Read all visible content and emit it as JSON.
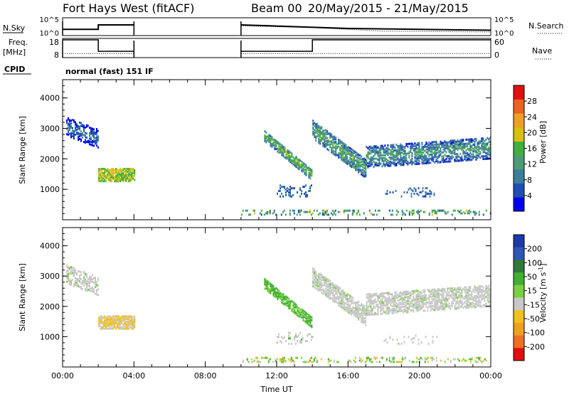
{
  "header": {
    "title": "Fort Hays West (fitACF)",
    "beam_label": "Beam 00",
    "date_range": "20/May/2015 - 21/May/2015"
  },
  "chart_data": [
    {
      "type": "line",
      "id": "noise-panel",
      "left_label": "N.Sky",
      "right_label": "N.Search",
      "y_ticks_left": [
        "10^5",
        "10^0"
      ],
      "y_ticks_right": [
        "10^5",
        "10^0"
      ],
      "x_hours": [
        0,
        4,
        4,
        10,
        24
      ],
      "note": "N.Sky trace present 00:00-04:00 and 10:00-24:00; no data 04:00-10:00",
      "series": [
        {
          "name": "N.Sky",
          "segments": [
            {
              "x": [
                0,
                2,
                2,
                4
              ],
              "y": [
                0.35,
                0.35,
                0.6,
                0.6
              ]
            },
            {
              "x": [
                10,
                13,
                16,
                20,
                24
              ],
              "y": [
                0.6,
                0.5,
                0.4,
                0.35,
                0.3
              ]
            }
          ]
        },
        {
          "name": "N.Search",
          "style": "dotted",
          "segments": [
            {
              "x": [
                10,
                14,
                18,
                24
              ],
              "y": [
                0.55,
                0.45,
                0.25,
                0.2
              ]
            }
          ]
        }
      ]
    },
    {
      "type": "line",
      "id": "freq-panel",
      "left_label": "Freq.",
      "left_unit": "[MHz]",
      "right_label": "Nave",
      "y_ticks_left": [
        "18",
        "8"
      ],
      "y_ticks_right": [
        "60",
        "0"
      ],
      "series": [
        {
          "name": "Freq.",
          "segments": [
            {
              "x": [
                0,
                2,
                2,
                4
              ],
              "y": [
                18,
                18,
                11,
                11
              ]
            },
            {
              "x": [
                10,
                14,
                14,
                24
              ],
              "y": [
                11,
                11,
                18,
                18
              ]
            }
          ]
        },
        {
          "name": "Nave",
          "style": "dotted",
          "segments": [
            {
              "x": [
                0,
                4
              ],
              "y": [
                10,
                10
              ]
            },
            {
              "x": [
                10,
                24
              ],
              "y": [
                10,
                10
              ]
            }
          ]
        }
      ]
    },
    {
      "type": "table",
      "id": "cpid-panel",
      "label": "CPID",
      "value": "normal (fast) 151 IF"
    },
    {
      "type": "heatmap",
      "id": "power-panel",
      "ylabel": "Slant Range [km]",
      "ylim": [
        0,
        4600
      ],
      "y_ticks": [
        1000,
        2000,
        3000,
        4000
      ],
      "xlim_hours": [
        0,
        24
      ],
      "colorbar": {
        "label": "Power [dB]",
        "ticks": [
          "4",
          "8",
          "12",
          "16",
          "20",
          "24",
          "28"
        ],
        "colors": [
          "#0000ee",
          "#1f4fb5",
          "#3c7d9a",
          "#4f9a75",
          "#3fb03f",
          "#d8c010",
          "#f0a020",
          "#f06020",
          "#e01010"
        ]
      },
      "features": [
        {
          "name": "morning-upper",
          "x": [
            0.2,
            2.0
          ],
          "range_km": [
            2600,
            3200
          ],
          "dB": 8
        },
        {
          "name": "morning-lower",
          "x": [
            2.0,
            4.0
          ],
          "range_km": [
            1300,
            1700
          ],
          "dB": 20
        },
        {
          "name": "ground-scatter",
          "x": [
            10,
            24
          ],
          "range_km": [
            200,
            400
          ],
          "dB": 12
        },
        {
          "name": "evening-arc",
          "x": [
            11.3,
            14.0
          ],
          "range_km": [
            1500,
            2800
          ],
          "dB": 16
        },
        {
          "name": "night-band",
          "x": [
            14.0,
            24.0
          ],
          "range_km": [
            1700,
            3000
          ],
          "dB": 16
        }
      ]
    },
    {
      "type": "heatmap",
      "id": "velocity-panel",
      "ylabel": "Slant Range [km]",
      "xlabel": "Time UT",
      "ylim": [
        0,
        4600
      ],
      "y_ticks": [
        1000,
        2000,
        3000,
        4000
      ],
      "x_ticks": [
        "00:00",
        "04:00",
        "08:00",
        "12:00",
        "16:00",
        "20:00",
        "00:00"
      ],
      "xlim_hours": [
        0,
        24
      ],
      "colorbar": {
        "label": "Velocity [m s^-1]",
        "ticks": [
          "200",
          "100",
          "50",
          "15",
          "-15",
          "-50",
          "-100",
          "-200"
        ],
        "colors": [
          "#1a3aa8",
          "#2f55b8",
          "#2f7a3a",
          "#3fb030",
          "#7ad040",
          "#c8c8c8",
          "#f0c020",
          "#f0a020",
          "#f07020",
          "#e01010"
        ]
      },
      "features": [
        {
          "name": "morning-upper",
          "x": [
            0.2,
            2.0
          ],
          "range_km": [
            2600,
            3200
          ],
          "velocity": 0
        },
        {
          "name": "morning-lower",
          "x": [
            2.0,
            4.0
          ],
          "range_km": [
            1300,
            1700
          ],
          "velocity": -30
        },
        {
          "name": "ground-scatter",
          "x": [
            10,
            24
          ],
          "range_km": [
            200,
            400
          ],
          "velocity": 0
        },
        {
          "name": "evening-arc",
          "x": [
            11.3,
            14.0
          ],
          "range_km": [
            1500,
            2800
          ],
          "velocity": 30
        },
        {
          "name": "night-band",
          "x": [
            14.0,
            24.0
          ],
          "range_km": [
            1700,
            3000
          ],
          "velocity": 0
        }
      ]
    }
  ]
}
